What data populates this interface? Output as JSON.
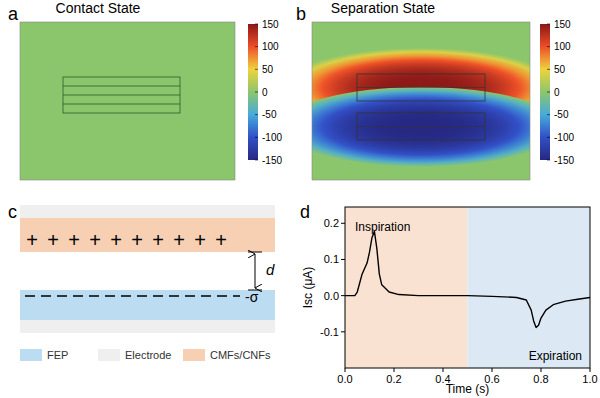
{
  "chart_data": [
    {
      "type": "heatmap",
      "panel": "a",
      "title": "Contact State",
      "values": [
        0
      ],
      "colorbar_range": [
        -150,
        150
      ],
      "colorbar_ticks": [
        150,
        100,
        50,
        0,
        -50,
        -100,
        -150
      ]
    },
    {
      "type": "heatmap",
      "panel": "b",
      "title": "Separation State",
      "values": [
        150,
        -150
      ],
      "colorbar_range": [
        -150,
        150
      ],
      "colorbar_ticks": [
        150,
        100,
        50,
        0,
        -50,
        -100,
        -150
      ]
    },
    {
      "type": "line",
      "panel": "d",
      "color": "#000000",
      "x": [
        0,
        0.04,
        0.05,
        0.07,
        0.09,
        0.1,
        0.11,
        0.12,
        0.13,
        0.14,
        0.15,
        0.18,
        0.22,
        0.3,
        0.5,
        0.6,
        0.7,
        0.74,
        0.76,
        0.77,
        0.78,
        0.79,
        0.8,
        0.82,
        0.85,
        0.9,
        0.95,
        1.0
      ],
      "values": [
        0,
        0,
        0.01,
        0.06,
        0.09,
        0.12,
        0.16,
        0.178,
        0.13,
        0.06,
        0.03,
        0.01,
        0.003,
        0,
        0,
        -0.002,
        -0.005,
        -0.012,
        -0.04,
        -0.07,
        -0.088,
        -0.082,
        -0.062,
        -0.04,
        -0.025,
        -0.015,
        -0.01,
        -0.005
      ],
      "xlim": [
        0,
        1
      ],
      "ylim": [
        -0.2,
        0.245
      ],
      "xticks": [
        {
          "value": 0,
          "label": "0.0"
        },
        0.2,
        0.4,
        0.6,
        0.8,
        {
          "value": 1,
          "label": "1.0"
        }
      ],
      "yticks": [
        -0.1,
        {
          "value": 0,
          "label": "0.0"
        },
        0.1,
        0.2
      ],
      "xlabel": "Time (s)",
      "ylabel": "Isc (μA)",
      "regions": [
        {
          "label": "Inspiration",
          "x": [
            0,
            0.5
          ],
          "color": "#f9e2d2"
        },
        {
          "label": "Expiration",
          "x": [
            0.5,
            1
          ],
          "color": "#dce9f5"
        }
      ]
    }
  ],
  "diagram": {
    "panel": "c",
    "plus": "+",
    "plus_count": 10,
    "gap_label": "d",
    "sigma_label": "-σ",
    "legend": [
      {
        "label": "FEP",
        "color": "#bcdcf2"
      },
      {
        "label": "Electrode",
        "color": "#efefef"
      },
      {
        "label": "CMFs/CNFs",
        "color": "#f7cfb3"
      }
    ]
  }
}
